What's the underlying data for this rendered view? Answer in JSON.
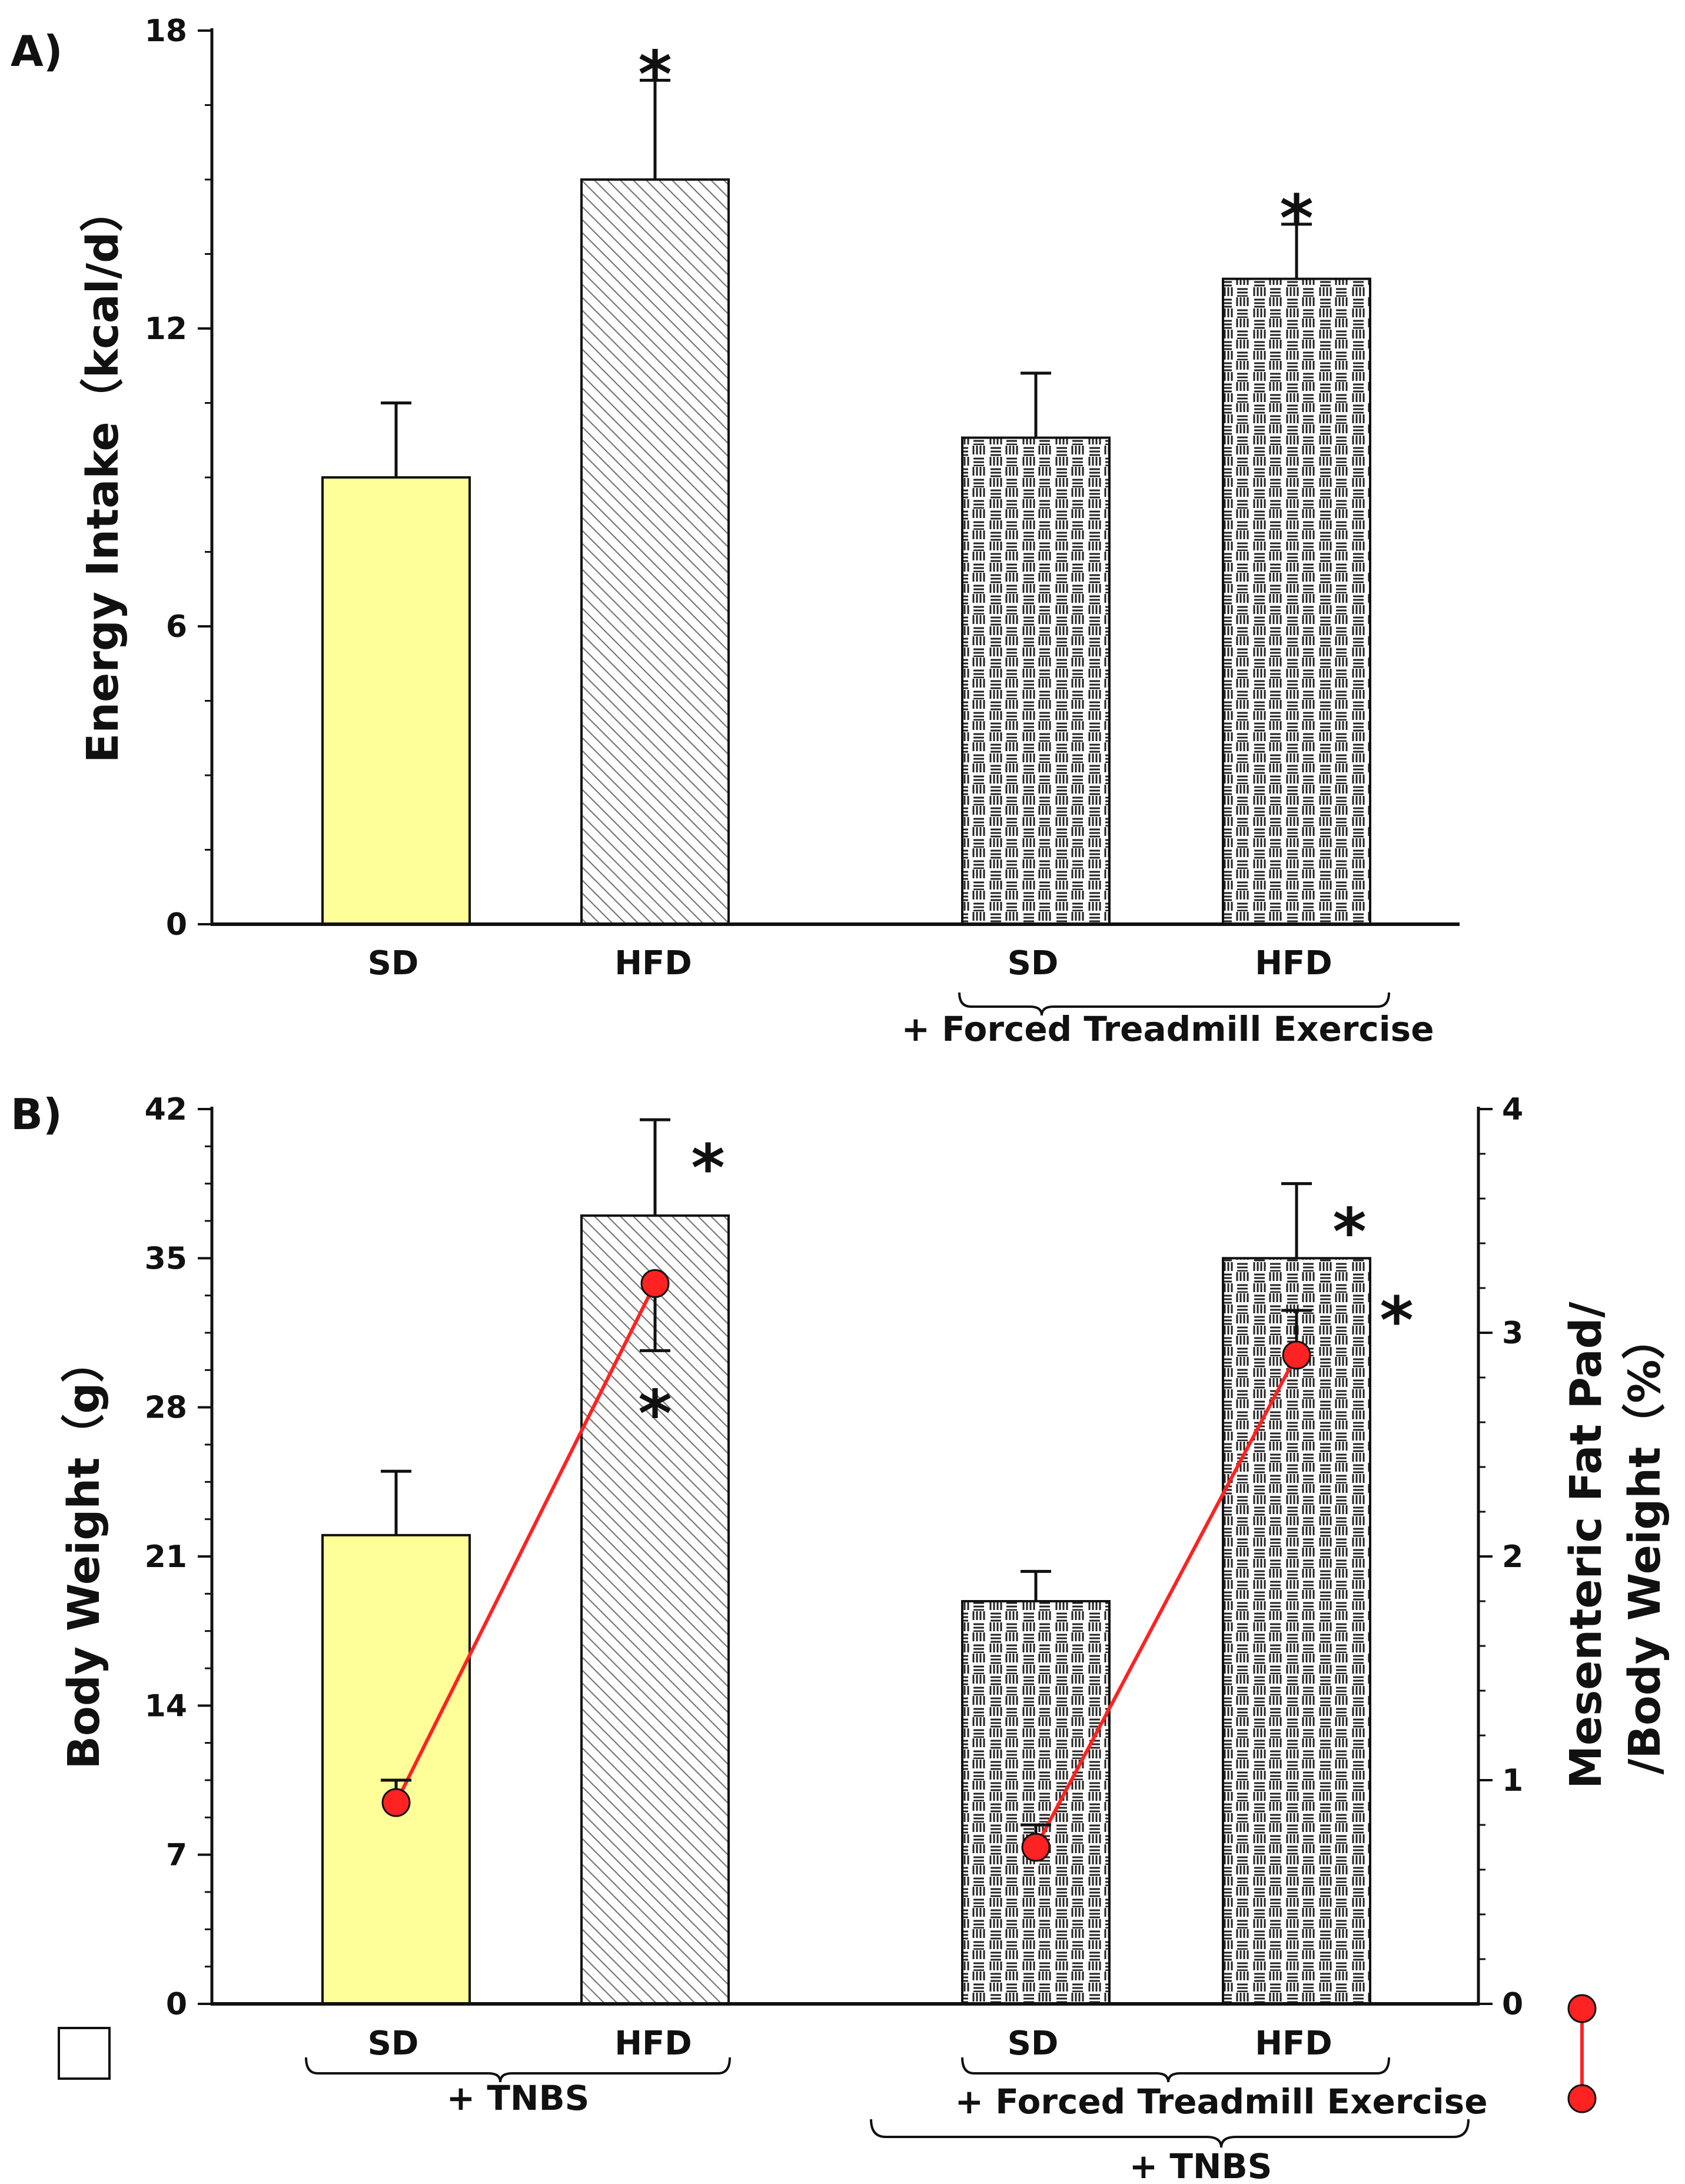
{
  "panels": {
    "A": {
      "label": "A)",
      "ylabel": "Energy Intake（kcal/d）",
      "group_label": "+ Forced Treadmill Exercise"
    },
    "B": {
      "label": "B)",
      "ylabel_left": "Body Weight（g）",
      "ylabel_right_line1": "Mesenteric Fat Pad/",
      "ylabel_right_line2": "/Body Weight（%）",
      "group_label_left": "+ TNBS",
      "group_label_right_1": "+ Forced Treadmill Exercise",
      "group_label_right_2": "+ TNBS"
    }
  },
  "chart_data": [
    {
      "id": "A",
      "type": "bar",
      "title": "",
      "xlabel": "",
      "ylabel": "Energy Intake（kcal/d）",
      "categories": [
        "SD",
        "HFD",
        "SD",
        "HFD"
      ],
      "groups": [
        "",
        "",
        "+ Forced Treadmill Exercise",
        "+ Forced Treadmill Exercise"
      ],
      "values": [
        9.0,
        15.0,
        9.8,
        13.0
      ],
      "errors": [
        1.5,
        2.0,
        1.3,
        1.1
      ],
      "significance": [
        "",
        "*",
        "",
        "*"
      ],
      "fills": [
        "#ffff99",
        "diagonal-hatch",
        "dash-pattern",
        "dash-pattern"
      ],
      "ylim": [
        0,
        18
      ],
      "yticks": [
        0,
        6,
        12,
        18
      ]
    },
    {
      "id": "B",
      "type": "bar",
      "title": "",
      "xlabel": "",
      "ylabel": "Body Weight（g）",
      "categories": [
        "SD",
        "HFD",
        "SD",
        "HFD"
      ],
      "groups": [
        "+ TNBS",
        "+ TNBS",
        "+ Forced Treadmill Exercise + TNBS",
        "+ Forced Treadmill Exercise + TNBS"
      ],
      "values": [
        22.0,
        37.0,
        18.9,
        35.0
      ],
      "errors": [
        3.0,
        4.5,
        1.4,
        3.5
      ],
      "significance": [
        "",
        "*",
        "",
        "*"
      ],
      "fills": [
        "#ffff99",
        "diagonal-hatch",
        "dash-pattern",
        "dash-pattern"
      ],
      "ylim": [
        0,
        42
      ],
      "yticks": [
        0,
        7,
        14,
        21,
        28,
        35,
        42
      ],
      "secondary": {
        "type": "line",
        "ylabel": "Mesenteric Fat Pad/ /Body Weight（%）",
        "ylim": [
          0,
          4
        ],
        "yticks": [
          0,
          1,
          2,
          3,
          4
        ],
        "values": [
          0.9,
          3.22,
          0.7,
          2.9
        ],
        "errors": [
          0.1,
          -0.3,
          0.1,
          0.2
        ],
        "significance": [
          "",
          "*",
          "",
          "*"
        ],
        "color": "#ff2222",
        "segments": [
          [
            0,
            1
          ],
          [
            2,
            3
          ]
        ]
      }
    }
  ]
}
